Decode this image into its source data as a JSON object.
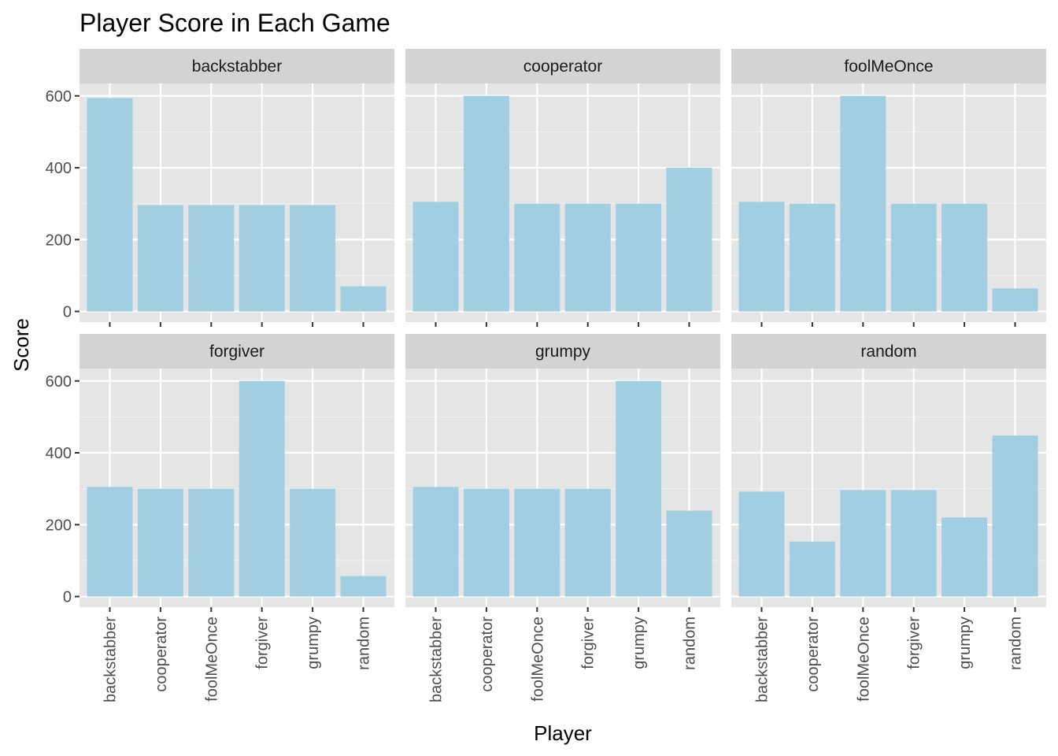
{
  "chart_data": {
    "type": "bar",
    "title": "Player Score in Each Game",
    "xlabel": "Player",
    "ylabel": "Score",
    "ylim": [
      0,
      700
    ],
    "yticks": [
      0,
      200,
      400,
      600
    ],
    "categories": [
      "backstabber",
      "cooperator",
      "foolMeOnce",
      "forgiver",
      "grumpy",
      "random"
    ],
    "bar_color": "#a1cfe1",
    "panel_bg": "#e5e5e5",
    "strip_bg": "#d3d3d3",
    "panels": [
      {
        "name": "backstabber",
        "values": [
          594,
          296,
          296,
          296,
          296,
          70
        ]
      },
      {
        "name": "cooperator",
        "values": [
          305,
          600,
          300,
          300,
          300,
          400
        ]
      },
      {
        "name": "foolMeOnce",
        "values": [
          305,
          300,
          600,
          300,
          300,
          64
        ]
      },
      {
        "name": "forgiver",
        "values": [
          305,
          300,
          300,
          600,
          300,
          57
        ]
      },
      {
        "name": "grumpy",
        "values": [
          305,
          300,
          300,
          300,
          600,
          239
        ]
      },
      {
        "name": "random",
        "values": [
          292,
          153,
          296,
          296,
          220,
          448
        ]
      }
    ]
  }
}
